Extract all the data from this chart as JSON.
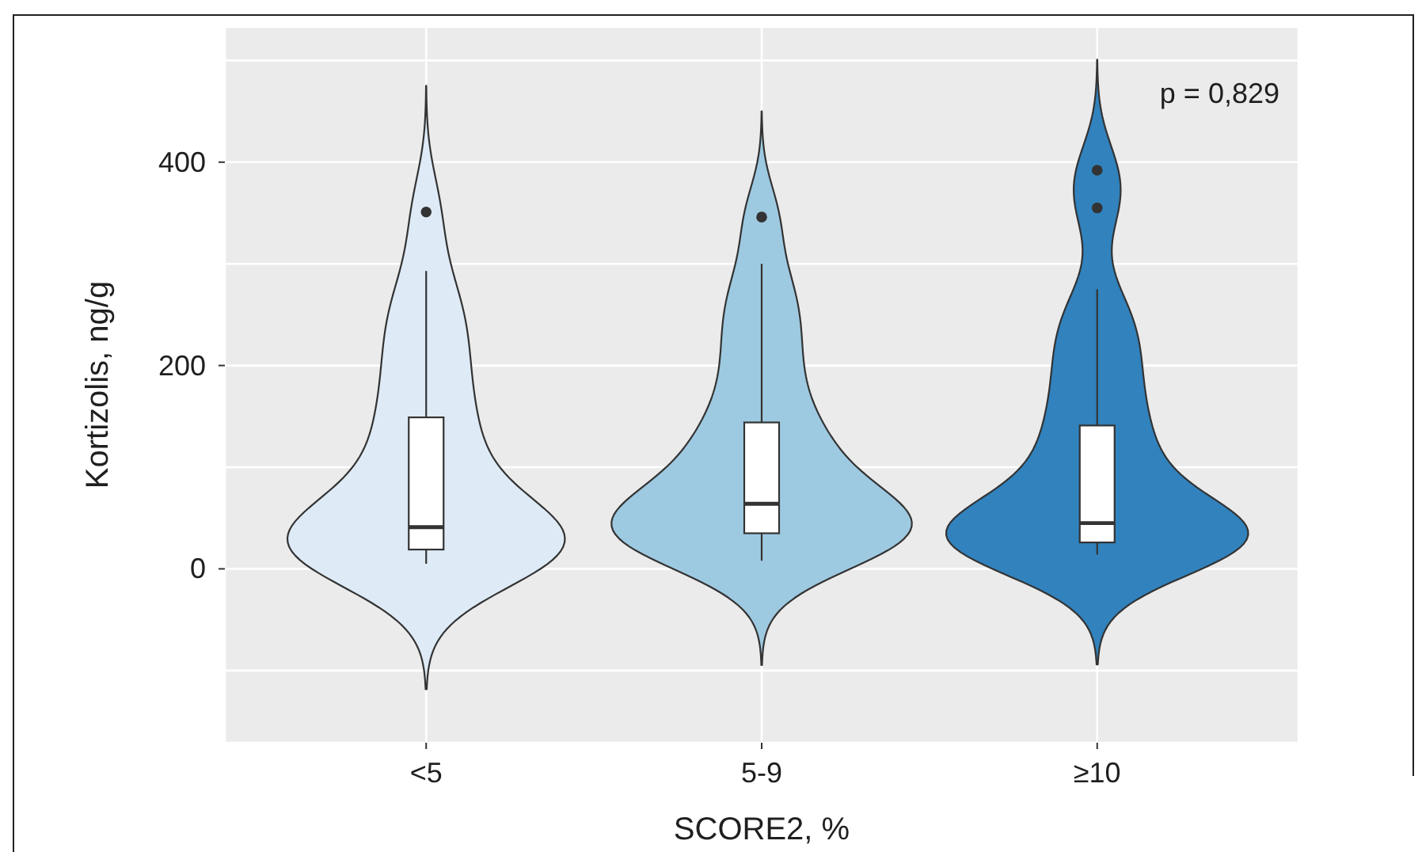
{
  "chart_data": {
    "type": "box",
    "xlabel": "SCORE2, %",
    "ylabel": "Kortizolis, ng/g",
    "annotations": [
      "p = 0,829"
    ],
    "categories": [
      "<5",
      "5-9",
      "≥10"
    ],
    "boxes": [
      {
        "low": 5,
        "q1": 19,
        "median": 41,
        "q3": 149,
        "high": 293,
        "outliers": [
          351
        ]
      },
      {
        "low": 8,
        "q1": 35,
        "median": 64,
        "q3": 144,
        "high": 300,
        "outliers": [
          346
        ]
      },
      {
        "low": 14,
        "q1": 26,
        "median": 45,
        "q3": 141,
        "high": 275,
        "outliers": [
          355,
          392
        ]
      }
    ],
    "ylim": [
      -171,
      533
    ],
    "yticks": [
      {
        "value": -100,
        "label": null
      },
      0,
      {
        "value": 100,
        "label": null
      },
      200,
      {
        "value": 300,
        "label": null
      },
      400,
      {
        "value": 500,
        "label": null
      }
    ],
    "grid": true
  }
}
